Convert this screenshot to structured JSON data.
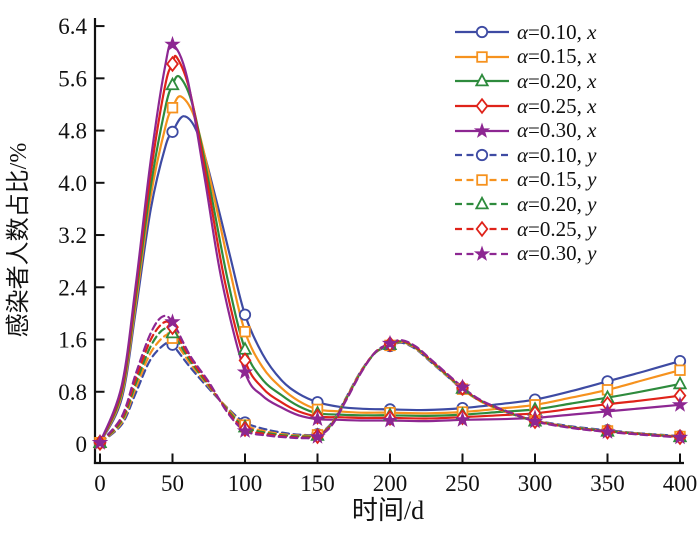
{
  "chart_data": {
    "type": "line",
    "title": "",
    "xlabel": "时间/d",
    "ylabel": "感染者人数占比/%",
    "xlim": [
      0,
      400
    ],
    "ylim": [
      0,
      6.4
    ],
    "grid": false,
    "legend_position": "top-right",
    "x_ticks": [
      0,
      50,
      100,
      150,
      200,
      250,
      300,
      350,
      400
    ],
    "x_tick_labels": [
      "0",
      "50",
      "100",
      "150",
      "200",
      "250",
      "300",
      "350",
      "400"
    ],
    "y_ticks": [
      0,
      0.8,
      1.6,
      2.4,
      3.2,
      4.0,
      4.8,
      5.6,
      6.4
    ],
    "y_tick_labels": [
      "0",
      "0.8",
      "1.6",
      "2.4",
      "3.2",
      "4.0",
      "4.8",
      "5.6",
      "6.4"
    ],
    "marker_interval": 50,
    "series": [
      {
        "name": "α=0.10, x",
        "color": "#3E4BA3",
        "style": "solid",
        "marker": "circle",
        "points": [
          [
            0,
            0.02
          ],
          [
            15,
            0.7
          ],
          [
            25,
            2.1
          ],
          [
            35,
            3.6
          ],
          [
            45,
            4.55
          ],
          [
            50,
            4.78
          ],
          [
            58,
            5.02
          ],
          [
            68,
            4.72
          ],
          [
            80,
            3.75
          ],
          [
            90,
            2.85
          ],
          [
            100,
            1.98
          ],
          [
            112,
            1.38
          ],
          [
            125,
            0.98
          ],
          [
            137,
            0.77
          ],
          [
            150,
            0.64
          ],
          [
            165,
            0.57
          ],
          [
            180,
            0.54
          ],
          [
            200,
            0.53
          ],
          [
            225,
            0.52
          ],
          [
            250,
            0.55
          ],
          [
            275,
            0.61
          ],
          [
            300,
            0.68
          ],
          [
            325,
            0.81
          ],
          [
            350,
            0.96
          ],
          [
            375,
            1.11
          ],
          [
            400,
            1.27
          ]
        ]
      },
      {
        "name": "α=0.15, x",
        "color": "#F6921E",
        "style": "solid",
        "marker": "square",
        "points": [
          [
            0,
            0.02
          ],
          [
            15,
            0.75
          ],
          [
            25,
            2.2
          ],
          [
            35,
            3.8
          ],
          [
            45,
            4.85
          ],
          [
            50,
            5.15
          ],
          [
            56,
            5.32
          ],
          [
            66,
            4.95
          ],
          [
            78,
            3.85
          ],
          [
            90,
            2.62
          ],
          [
            100,
            1.72
          ],
          [
            112,
            1.18
          ],
          [
            125,
            0.86
          ],
          [
            137,
            0.66
          ],
          [
            150,
            0.53
          ],
          [
            165,
            0.5
          ],
          [
            180,
            0.48
          ],
          [
            200,
            0.48
          ],
          [
            225,
            0.47
          ],
          [
            250,
            0.49
          ],
          [
            275,
            0.54
          ],
          [
            300,
            0.6
          ],
          [
            325,
            0.71
          ],
          [
            350,
            0.83
          ],
          [
            375,
            0.98
          ],
          [
            400,
            1.13
          ]
        ]
      },
      {
        "name": "α=0.20, x",
        "color": "#2E8B3D",
        "style": "solid",
        "marker": "triangle",
        "points": [
          [
            0,
            0.02
          ],
          [
            15,
            0.8
          ],
          [
            25,
            2.3
          ],
          [
            35,
            3.95
          ],
          [
            45,
            5.15
          ],
          [
            50,
            5.5
          ],
          [
            55,
            5.62
          ],
          [
            64,
            5.18
          ],
          [
            76,
            3.9
          ],
          [
            88,
            2.52
          ],
          [
            100,
            1.45
          ],
          [
            112,
            0.99
          ],
          [
            125,
            0.75
          ],
          [
            137,
            0.58
          ],
          [
            150,
            0.47
          ],
          [
            165,
            0.45
          ],
          [
            180,
            0.44
          ],
          [
            200,
            0.44
          ],
          [
            225,
            0.43
          ],
          [
            250,
            0.45
          ],
          [
            275,
            0.49
          ],
          [
            300,
            0.53
          ],
          [
            325,
            0.62
          ],
          [
            350,
            0.71
          ],
          [
            375,
            0.81
          ],
          [
            400,
            0.92
          ]
        ]
      },
      {
        "name": "α=0.25, x",
        "color": "#DF231A",
        "style": "solid",
        "marker": "diamond",
        "points": [
          [
            0,
            0.02
          ],
          [
            15,
            0.85
          ],
          [
            25,
            2.4
          ],
          [
            35,
            4.15
          ],
          [
            45,
            5.5
          ],
          [
            50,
            5.82
          ],
          [
            53,
            5.92
          ],
          [
            62,
            5.4
          ],
          [
            74,
            4.0
          ],
          [
            86,
            2.5
          ],
          [
            100,
            1.28
          ],
          [
            112,
            0.86
          ],
          [
            125,
            0.64
          ],
          [
            137,
            0.5
          ],
          [
            150,
            0.42
          ],
          [
            165,
            0.41
          ],
          [
            180,
            0.4
          ],
          [
            200,
            0.4
          ],
          [
            225,
            0.39
          ],
          [
            250,
            0.41
          ],
          [
            275,
            0.44
          ],
          [
            300,
            0.47
          ],
          [
            325,
            0.54
          ],
          [
            350,
            0.61
          ],
          [
            375,
            0.67
          ],
          [
            400,
            0.74
          ]
        ]
      },
      {
        "name": "α=0.30, x",
        "color": "#8D2792",
        "style": "solid",
        "marker": "star",
        "points": [
          [
            0,
            0.02
          ],
          [
            15,
            0.9
          ],
          [
            25,
            2.5
          ],
          [
            35,
            4.35
          ],
          [
            45,
            5.8
          ],
          [
            50,
            6.12
          ],
          [
            60,
            5.62
          ],
          [
            72,
            4.1
          ],
          [
            84,
            2.5
          ],
          [
            100,
            1.1
          ],
          [
            112,
            0.74
          ],
          [
            125,
            0.56
          ],
          [
            137,
            0.44
          ],
          [
            150,
            0.38
          ],
          [
            165,
            0.37
          ],
          [
            180,
            0.36
          ],
          [
            200,
            0.36
          ],
          [
            225,
            0.35
          ],
          [
            250,
            0.37
          ],
          [
            275,
            0.38
          ],
          [
            300,
            0.4
          ],
          [
            325,
            0.45
          ],
          [
            350,
            0.5
          ],
          [
            375,
            0.55
          ],
          [
            400,
            0.6
          ]
        ]
      },
      {
        "name": "α=0.10, y",
        "color": "#3E4BA3",
        "style": "dashed",
        "marker": "circle",
        "points": [
          [
            0,
            0.02
          ],
          [
            15,
            0.3
          ],
          [
            25,
            0.8
          ],
          [
            35,
            1.3
          ],
          [
            46,
            1.55
          ],
          [
            50,
            1.52
          ],
          [
            62,
            1.18
          ],
          [
            75,
            0.85
          ],
          [
            88,
            0.55
          ],
          [
            100,
            0.33
          ],
          [
            115,
            0.22
          ],
          [
            130,
            0.16
          ],
          [
            140,
            0.14
          ],
          [
            150,
            0.15
          ],
          [
            160,
            0.33
          ],
          [
            170,
            0.72
          ],
          [
            180,
            1.12
          ],
          [
            190,
            1.4
          ],
          [
            200,
            1.5
          ],
          [
            208,
            1.55
          ],
          [
            218,
            1.45
          ],
          [
            230,
            1.22
          ],
          [
            250,
            0.84
          ],
          [
            262,
            0.66
          ],
          [
            275,
            0.53
          ],
          [
            287,
            0.44
          ],
          [
            300,
            0.36
          ],
          [
            325,
            0.27
          ],
          [
            350,
            0.21
          ],
          [
            375,
            0.16
          ],
          [
            400,
            0.12
          ]
        ]
      },
      {
        "name": "α=0.15, y",
        "color": "#F6921E",
        "style": "dashed",
        "marker": "square",
        "points": [
          [
            0,
            0.02
          ],
          [
            15,
            0.33
          ],
          [
            25,
            0.88
          ],
          [
            35,
            1.4
          ],
          [
            45,
            1.66
          ],
          [
            50,
            1.62
          ],
          [
            62,
            1.24
          ],
          [
            75,
            0.88
          ],
          [
            88,
            0.54
          ],
          [
            100,
            0.29
          ],
          [
            115,
            0.19
          ],
          [
            130,
            0.14
          ],
          [
            140,
            0.13
          ],
          [
            150,
            0.14
          ],
          [
            160,
            0.32
          ],
          [
            170,
            0.71
          ],
          [
            180,
            1.11
          ],
          [
            190,
            1.4
          ],
          [
            200,
            1.51
          ],
          [
            208,
            1.56
          ],
          [
            218,
            1.46
          ],
          [
            230,
            1.23
          ],
          [
            250,
            0.84
          ],
          [
            262,
            0.66
          ],
          [
            275,
            0.53
          ],
          [
            287,
            0.44
          ],
          [
            300,
            0.355
          ],
          [
            325,
            0.26
          ],
          [
            350,
            0.2
          ],
          [
            375,
            0.155
          ],
          [
            400,
            0.115
          ]
        ]
      },
      {
        "name": "α=0.20, y",
        "color": "#2E8B3D",
        "style": "dashed",
        "marker": "triangle",
        "points": [
          [
            0,
            0.02
          ],
          [
            15,
            0.36
          ],
          [
            25,
            0.95
          ],
          [
            35,
            1.5
          ],
          [
            44,
            1.76
          ],
          [
            50,
            1.7
          ],
          [
            62,
            1.28
          ],
          [
            75,
            0.9
          ],
          [
            88,
            0.52
          ],
          [
            100,
            0.26
          ],
          [
            115,
            0.17
          ],
          [
            130,
            0.125
          ],
          [
            140,
            0.115
          ],
          [
            150,
            0.13
          ],
          [
            160,
            0.31
          ],
          [
            170,
            0.7
          ],
          [
            180,
            1.1
          ],
          [
            190,
            1.4
          ],
          [
            200,
            1.52
          ],
          [
            208,
            1.57
          ],
          [
            218,
            1.47
          ],
          [
            230,
            1.24
          ],
          [
            250,
            0.85
          ],
          [
            262,
            0.67
          ],
          [
            275,
            0.54
          ],
          [
            287,
            0.44
          ],
          [
            300,
            0.35
          ],
          [
            325,
            0.255
          ],
          [
            350,
            0.195
          ],
          [
            375,
            0.15
          ],
          [
            400,
            0.11
          ]
        ]
      },
      {
        "name": "α=0.25, y",
        "color": "#DF231A",
        "style": "dashed",
        "marker": "diamond",
        "points": [
          [
            0,
            0.02
          ],
          [
            15,
            0.39
          ],
          [
            25,
            1.02
          ],
          [
            35,
            1.6
          ],
          [
            44,
            1.86
          ],
          [
            50,
            1.79
          ],
          [
            62,
            1.32
          ],
          [
            75,
            0.92
          ],
          [
            88,
            0.5
          ],
          [
            100,
            0.23
          ],
          [
            115,
            0.15
          ],
          [
            130,
            0.11
          ],
          [
            140,
            0.1
          ],
          [
            150,
            0.12
          ],
          [
            160,
            0.3
          ],
          [
            170,
            0.69
          ],
          [
            180,
            1.1
          ],
          [
            190,
            1.41
          ],
          [
            200,
            1.53
          ],
          [
            208,
            1.58
          ],
          [
            218,
            1.48
          ],
          [
            230,
            1.25
          ],
          [
            250,
            0.86
          ],
          [
            262,
            0.67
          ],
          [
            275,
            0.54
          ],
          [
            287,
            0.45
          ],
          [
            300,
            0.35
          ],
          [
            325,
            0.25
          ],
          [
            350,
            0.19
          ],
          [
            375,
            0.145
          ],
          [
            400,
            0.105
          ]
        ]
      },
      {
        "name": "α=0.30, y",
        "color": "#8D2792",
        "style": "dashed",
        "marker": "star",
        "points": [
          [
            0,
            0.02
          ],
          [
            15,
            0.42
          ],
          [
            25,
            1.1
          ],
          [
            35,
            1.7
          ],
          [
            43,
            1.95
          ],
          [
            50,
            1.87
          ],
          [
            62,
            1.36
          ],
          [
            75,
            0.95
          ],
          [
            88,
            0.48
          ],
          [
            100,
            0.2
          ],
          [
            115,
            0.13
          ],
          [
            130,
            0.1
          ],
          [
            140,
            0.09
          ],
          [
            150,
            0.11
          ],
          [
            160,
            0.29
          ],
          [
            170,
            0.68
          ],
          [
            180,
            1.09
          ],
          [
            190,
            1.41
          ],
          [
            200,
            1.54
          ],
          [
            208,
            1.59
          ],
          [
            218,
            1.49
          ],
          [
            230,
            1.26
          ],
          [
            250,
            0.87
          ],
          [
            262,
            0.68
          ],
          [
            275,
            0.55
          ],
          [
            287,
            0.45
          ],
          [
            300,
            0.345
          ],
          [
            325,
            0.245
          ],
          [
            350,
            0.185
          ],
          [
            375,
            0.14
          ],
          [
            400,
            0.1
          ]
        ]
      }
    ]
  },
  "legend": {
    "items": [
      {
        "alpha": "α",
        "rest": "=0.10, ",
        "var": "x"
      },
      {
        "alpha": "α",
        "rest": "=0.15, ",
        "var": "x"
      },
      {
        "alpha": "α",
        "rest": "=0.20, ",
        "var": "x"
      },
      {
        "alpha": "α",
        "rest": "=0.25, ",
        "var": "x"
      },
      {
        "alpha": "α",
        "rest": "=0.30, ",
        "var": "x"
      },
      {
        "alpha": "α",
        "rest": "=0.10, ",
        "var": "y"
      },
      {
        "alpha": "α",
        "rest": "=0.15, ",
        "var": "y"
      },
      {
        "alpha": "α",
        "rest": "=0.20, ",
        "var": "y"
      },
      {
        "alpha": "α",
        "rest": "=0.25, ",
        "var": "y"
      },
      {
        "alpha": "α",
        "rest": "=0.30, ",
        "var": "y"
      }
    ]
  }
}
